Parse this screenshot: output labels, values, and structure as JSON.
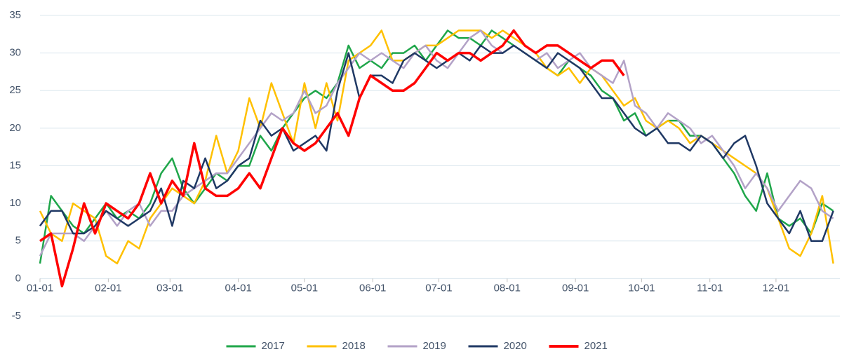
{
  "chart_data": {
    "type": "line",
    "x": [
      0,
      5,
      10,
      15,
      20,
      25,
      30,
      35,
      40,
      45,
      50,
      55,
      60,
      65,
      70,
      75,
      80,
      85,
      90,
      95,
      100,
      105,
      110,
      115,
      120,
      125,
      130,
      135,
      140,
      145,
      150,
      155,
      160,
      165,
      170,
      175,
      180,
      185,
      190,
      195,
      200,
      205,
      210,
      215,
      220,
      225,
      230,
      235,
      240,
      245,
      250,
      255,
      260,
      265,
      270,
      275,
      280,
      285,
      290,
      295,
      300,
      305,
      310,
      315,
      320,
      325,
      330,
      335,
      340,
      345,
      350,
      355,
      360
    ],
    "xlim": [
      0,
      363
    ],
    "xticks": [
      {
        "value": 0,
        "label": "01-01"
      },
      {
        "value": 31,
        "label": "02-01"
      },
      {
        "value": 59,
        "label": "03-01"
      },
      {
        "value": 90,
        "label": "04-01"
      },
      {
        "value": 120,
        "label": "05-01"
      },
      {
        "value": 151,
        "label": "06-01"
      },
      {
        "value": 181,
        "label": "07-01"
      },
      {
        "value": 212,
        "label": "08-01"
      },
      {
        "value": 243,
        "label": "09-01"
      },
      {
        "value": 273,
        "label": "10-01"
      },
      {
        "value": 304,
        "label": "11-01"
      },
      {
        "value": 334,
        "label": "12-01"
      }
    ],
    "ylim": [
      -5,
      35
    ],
    "yticks": [
      -5,
      0,
      5,
      10,
      15,
      20,
      25,
      30,
      35
    ],
    "grid": true,
    "legend": "bottom",
    "series": [
      {
        "name": "2017",
        "color": "#1fa64a",
        "values": [
          2,
          11,
          9,
          7,
          6,
          8,
          10,
          8,
          9,
          8,
          10,
          14,
          16,
          12,
          10,
          12,
          14,
          13,
          15,
          15,
          19,
          17,
          20,
          22,
          24,
          25,
          24,
          26,
          31,
          28,
          29,
          28,
          30,
          30,
          31,
          29,
          31,
          33,
          32,
          32,
          31,
          33,
          32,
          31,
          30,
          29,
          28,
          27,
          29,
          28,
          27,
          25,
          24,
          21,
          22,
          19,
          20,
          21,
          21,
          19,
          19,
          18,
          16,
          14,
          11,
          9,
          14,
          8,
          7,
          8,
          6,
          10,
          9
        ]
      },
      {
        "name": "2018",
        "color": "#ffc000",
        "values": [
          9,
          6,
          5,
          10,
          9,
          8,
          3,
          2,
          5,
          4,
          8,
          10,
          12,
          11,
          10,
          13,
          19,
          14,
          17,
          24,
          20,
          26,
          22,
          18,
          26,
          20,
          26,
          21,
          29,
          30,
          31,
          33,
          29,
          29,
          30,
          31,
          31,
          32,
          33,
          33,
          33,
          32,
          33,
          32,
          31,
          30,
          28,
          27,
          28,
          26,
          28,
          27,
          25,
          23,
          24,
          21,
          20,
          21,
          20,
          18,
          19,
          18,
          17,
          16,
          15,
          14,
          12,
          8,
          4,
          3,
          6,
          11,
          2
        ]
      },
      {
        "name": "2019",
        "color": "#b3a2c7",
        "values": [
          3,
          6,
          6,
          6,
          5,
          7,
          9,
          7,
          9,
          10,
          7,
          9,
          9,
          11,
          12,
          13,
          14,
          14,
          16,
          18,
          20,
          22,
          21,
          22,
          25,
          22,
          23,
          26,
          28,
          30,
          29,
          30,
          29,
          28,
          30,
          31,
          29,
          28,
          30,
          32,
          33,
          31,
          30,
          31,
          30,
          29,
          30,
          28,
          29,
          30,
          28,
          27,
          26,
          29,
          23,
          22,
          20,
          22,
          21,
          20,
          18,
          19,
          17,
          15,
          12,
          14,
          12,
          9,
          11,
          13,
          12,
          9,
          8
        ]
      },
      {
        "name": "2020",
        "color": "#1f3864",
        "values": [
          7,
          9,
          9,
          6,
          6,
          7,
          9,
          8,
          7,
          8,
          9,
          12,
          7,
          13,
          12,
          16,
          12,
          13,
          15,
          16,
          21,
          19,
          20,
          17,
          18,
          19,
          17,
          25,
          30,
          24,
          27,
          27,
          26,
          29,
          30,
          29,
          28,
          29,
          30,
          29,
          31,
          30,
          30,
          31,
          30,
          29,
          28,
          30,
          29,
          28,
          26,
          24,
          24,
          22,
          20,
          19,
          20,
          18,
          18,
          17,
          19,
          18,
          16,
          18,
          19,
          15,
          10,
          8,
          6,
          9,
          5,
          5,
          9
        ]
      },
      {
        "name": "2021",
        "color": "#ff0000",
        "values": [
          5,
          6,
          -1,
          4,
          10,
          6,
          10,
          9,
          8,
          10,
          14,
          10,
          13,
          11,
          18,
          12,
          11,
          11,
          12,
          14,
          12,
          16,
          20,
          18,
          17,
          18,
          20,
          22,
          19,
          24,
          27,
          26,
          25,
          25,
          26,
          28,
          30,
          29,
          30,
          30,
          29,
          30,
          31,
          33,
          31,
          30,
          31,
          31,
          30,
          29,
          28,
          29,
          29,
          27,
          null,
          null,
          null,
          null,
          null,
          null,
          null,
          null,
          null,
          null,
          null,
          null,
          null,
          null,
          null,
          null,
          null,
          null,
          null
        ]
      }
    ]
  }
}
